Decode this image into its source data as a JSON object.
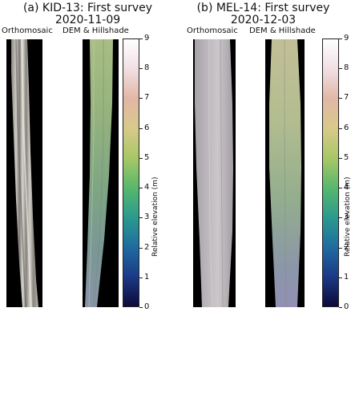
{
  "figure": {
    "colorbar_ticks": [
      "0",
      "1",
      "2",
      "3",
      "4",
      "5",
      "6",
      "7",
      "8",
      "9"
    ],
    "colorbar_gradient": [
      "#0d0a3a",
      "#1b3a86",
      "#1f6ca0",
      "#2b9a8d",
      "#58b86c",
      "#a8c766",
      "#d8c98a",
      "#e2b7a6",
      "#f1dfe4",
      "#ffffff"
    ],
    "colorbar_label": "Relative elevation (m)"
  },
  "panels": [
    {
      "title_line1": "(a) KID-13: First survey",
      "title_line2": "2020-11-09",
      "ortho_label": "Orthomosaic",
      "dem_label": "DEM & Hillshade"
    },
    {
      "title_line1": "(b) MEL-14: First survey",
      "title_line2": "2020-12-03",
      "ortho_label": "Orthomosaic",
      "dem_label": "DEM & Hillshade"
    }
  ]
}
